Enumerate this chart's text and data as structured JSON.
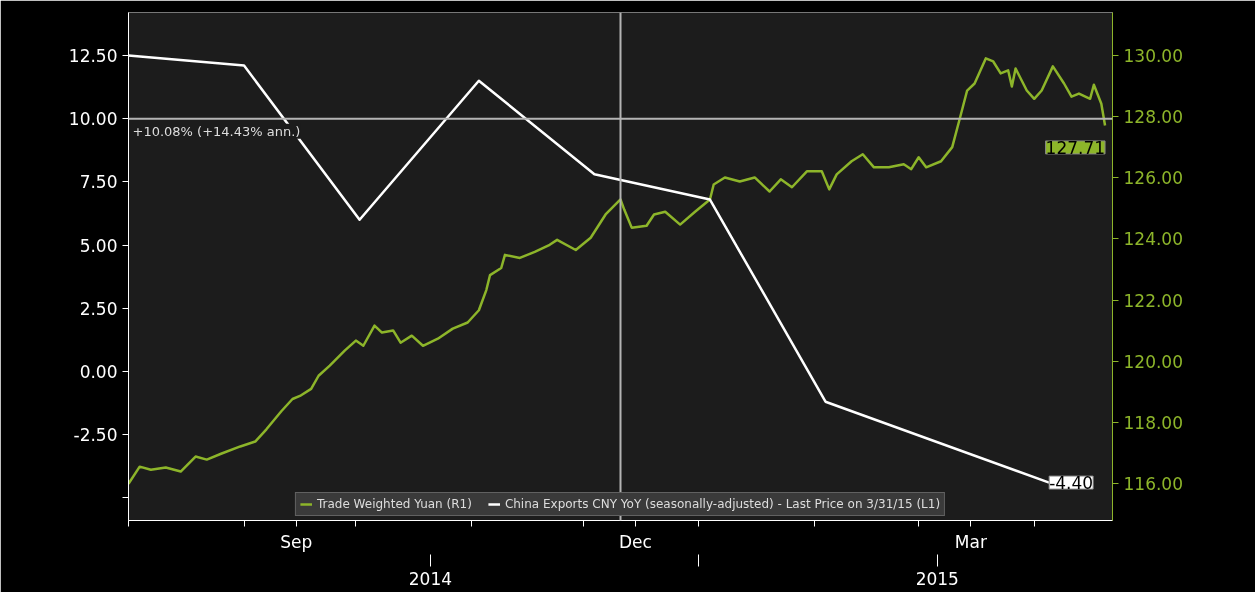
{
  "chart_data": {
    "type": "line",
    "legend": "bottom",
    "grid": false,
    "xlim": [
      "2014-08-01",
      "2015-04-22"
    ],
    "xticks": [
      {
        "value": "2014-08-01",
        "label": null
      },
      {
        "value": "2014-09-01",
        "label": null
      },
      {
        "value": "2014-09-15",
        "label": "Sep"
      },
      {
        "value": "2014-10-01",
        "label": null
      },
      {
        "value": "2014-11-01",
        "label": null
      },
      {
        "value": "2014-12-01",
        "label": null
      },
      {
        "value": "2014-12-15",
        "label": "Dec"
      },
      {
        "value": "2015-01-01",
        "label": null
      },
      {
        "value": "2015-02-01",
        "label": null
      },
      {
        "value": "2015-03-01",
        "label": null
      },
      {
        "value": "2015-03-15",
        "label": "Mar"
      },
      {
        "value": "2015-04-01",
        "label": null
      }
    ],
    "x2lim": [
      "2014-08-01",
      "2015-04-22"
    ],
    "x2ticks": [
      {
        "value": "2014-10-21",
        "label": "2014"
      },
      {
        "value": "2015-01-01",
        "label": null
      },
      {
        "value": "2015-03-06",
        "label": "2015"
      }
    ],
    "ylim": [
      -5.9,
      14.2
    ],
    "yticks": [
      {
        "value": -5,
        "label": null
      },
      {
        "value": -2.5,
        "label": "-2.50"
      },
      {
        "value": 0,
        "label": "0.00"
      },
      {
        "value": 2.5,
        "label": "2.50"
      },
      {
        "value": 5,
        "label": "5.00"
      },
      {
        "value": 7.5,
        "label": "7.50"
      },
      {
        "value": 10,
        "label": "10.00"
      },
      {
        "value": 12.5,
        "label": "12.50"
      }
    ],
    "y2lim": [
      114.8,
      131.4
    ],
    "y2ticks": [
      {
        "value": 116,
        "label": "116.00"
      },
      {
        "value": 118,
        "label": "118.00"
      },
      {
        "value": 120,
        "label": "120.00"
      },
      {
        "value": 122,
        "label": "122.00"
      },
      {
        "value": 124,
        "label": "124.00"
      },
      {
        "value": 126,
        "label": "126.00"
      },
      {
        "value": 128,
        "label": "128.00"
      },
      {
        "value": 130,
        "label": "130.00"
      }
    ],
    "ref_lines": [
      {
        "axis": "y",
        "value": 10,
        "label": null,
        "color": "#b4b4b4"
      },
      {
        "axis": "x",
        "value": "2014-12-11",
        "label": null,
        "color": "#b4b4b4"
      }
    ],
    "annotations": [
      "+10.08% (+14.43% ann.)"
    ],
    "series": [
      {
        "name": "Trade Weighted Yuan (R1)",
        "color": "#8db52a",
        "axis": "y2",
        "x": [
          "2014-08-01",
          "2014-08-04",
          "2014-08-07",
          "2014-08-11",
          "2014-08-15",
          "2014-08-19",
          "2014-08-22",
          "2014-08-26",
          "2014-08-31",
          "2014-09-04",
          "2014-09-07",
          "2014-09-11",
          "2014-09-14",
          "2014-09-16",
          "2014-09-19",
          "2014-09-21",
          "2014-09-24",
          "2014-09-28",
          "2014-10-01",
          "2014-10-03",
          "2014-10-06",
          "2014-10-08",
          "2014-10-11",
          "2014-10-13",
          "2014-10-16",
          "2014-10-19",
          "2014-10-23",
          "2014-10-27",
          "2014-10-31",
          "2014-11-03",
          "2014-11-05",
          "2014-11-06",
          "2014-11-09",
          "2014-11-10",
          "2014-11-14",
          "2014-11-18",
          "2014-11-22",
          "2014-11-24",
          "2014-11-29",
          "2014-12-03",
          "2014-12-07",
          "2014-12-11",
          "2014-12-12",
          "2014-12-14",
          "2014-12-18",
          "2014-12-20",
          "2014-12-23",
          "2014-12-27",
          "2014-12-31",
          "2015-01-04",
          "2015-01-05",
          "2015-01-08",
          "2015-01-12",
          "2015-01-16",
          "2015-01-20",
          "2015-01-23",
          "2015-01-26",
          "2015-01-30",
          "2015-02-03",
          "2015-02-05",
          "2015-02-07",
          "2015-02-11",
          "2015-02-14",
          "2015-02-17",
          "2015-02-21",
          "2015-02-25",
          "2015-02-27",
          "2015-03-01",
          "2015-03-03",
          "2015-03-07",
          "2015-03-10",
          "2015-03-12",
          "2015-03-14",
          "2015-03-16",
          "2015-03-19",
          "2015-03-21",
          "2015-03-23",
          "2015-03-25",
          "2015-03-26",
          "2015-03-27",
          "2015-03-30",
          "2015-04-01",
          "2015-04-03",
          "2015-04-06",
          "2015-04-09",
          "2015-04-11",
          "2015-04-13",
          "2015-04-16",
          "2015-04-17",
          "2015-04-19",
          "2015-04-20"
        ],
        "values": [
          116.0,
          116.56,
          116.46,
          116.53,
          116.4,
          116.89,
          116.79,
          116.99,
          117.22,
          117.38,
          117.78,
          118.37,
          118.77,
          118.87,
          119.1,
          119.53,
          119.86,
          120.35,
          120.68,
          120.51,
          121.17,
          120.94,
          121.01,
          120.61,
          120.84,
          120.51,
          120.74,
          121.07,
          121.27,
          121.67,
          122.33,
          122.82,
          123.05,
          123.48,
          123.38,
          123.58,
          123.81,
          123.97,
          123.64,
          124.04,
          124.8,
          125.29,
          124.96,
          124.37,
          124.43,
          124.8,
          124.89,
          124.47,
          124.89,
          125.29,
          125.78,
          126.01,
          125.88,
          126.01,
          125.55,
          125.95,
          125.69,
          126.21,
          126.21,
          125.62,
          126.11,
          126.54,
          126.77,
          126.34,
          126.34,
          126.44,
          126.28,
          126.67,
          126.34,
          126.54,
          127.0,
          127.92,
          128.85,
          129.08,
          129.9,
          129.8,
          129.41,
          129.51,
          128.98,
          129.57,
          128.85,
          128.58,
          128.85,
          129.64,
          129.08,
          128.65,
          128.75,
          128.58,
          129.04,
          128.42,
          127.71
        ],
        "value_labels": [
          null,
          null,
          null,
          null,
          null,
          null,
          null,
          null,
          null,
          null,
          null,
          null,
          null,
          null,
          null,
          null,
          null,
          null,
          null,
          null,
          null,
          null,
          null,
          null,
          null,
          null,
          null,
          null,
          null,
          null,
          null,
          null,
          null,
          null,
          null,
          null,
          null,
          null,
          null,
          null,
          null,
          null,
          null,
          null,
          null,
          null,
          null,
          null,
          null,
          null,
          null,
          null,
          null,
          null,
          null,
          null,
          null,
          null,
          null,
          null,
          null,
          null,
          null,
          null,
          null,
          null,
          null,
          null,
          null,
          null,
          null,
          null,
          null,
          null,
          null,
          null,
          null,
          null,
          null,
          null,
          null,
          null,
          null,
          null,
          null,
          null,
          null,
          null,
          null,
          null,
          "127.71"
        ]
      },
      {
        "name": "China Exports CNY YoY (seasonally-adjusted) - Last Price on 3/31/15 (L1)",
        "color": "#ffffff",
        "axis": "y",
        "x": [
          "2014-08-01",
          "2014-09-01",
          "2014-10-02",
          "2014-11-03",
          "2014-12-04",
          "2015-01-04",
          "2015-02-04",
          "2015-04-05"
        ],
        "values": [
          12.5,
          12.1,
          6.0,
          11.5,
          7.8,
          6.8,
          -1.2,
          -4.4
        ],
        "value_labels": [
          null,
          null,
          null,
          null,
          null,
          null,
          null,
          "-4.40"
        ]
      }
    ]
  }
}
